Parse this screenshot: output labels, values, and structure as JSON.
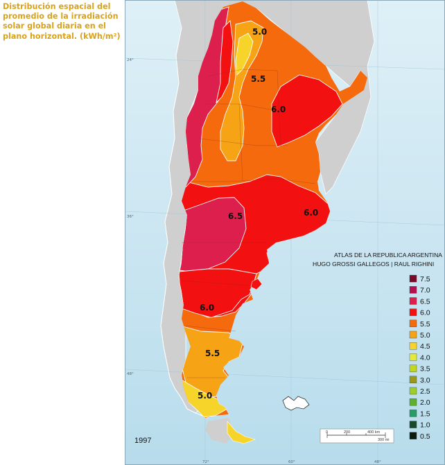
{
  "title": "Distribución espacial del promedio de la irradiación solar global diaria en el plano horizontal. (kWh/m²)",
  "atlas_line1": "ATLAS DE LA REPUBLICA ARGENTINA",
  "atlas_line2": "HUGO GROSSI GALLEGOS | RAUL RIGHINI",
  "year": "1997",
  "graticule": {
    "lat_24": "24°",
    "lat_36": "36°",
    "lat_48": "48°",
    "lon_72": "72°",
    "lon_60": "60°",
    "lon_48": "48°"
  },
  "scale": {
    "km0": "0",
    "km200": "200",
    "km400": "400 km",
    "mi300": "300 mi"
  },
  "map_labels": [
    {
      "id": "nw-5-0",
      "text": "5.0"
    },
    {
      "id": "north-5-5",
      "text": "5.5"
    },
    {
      "id": "ne-6-0",
      "text": "6.0"
    },
    {
      "id": "center-6-5",
      "text": "6.5"
    },
    {
      "id": "east-6-0",
      "text": "6.0"
    },
    {
      "id": "patagonia-6-0",
      "text": "6.0"
    },
    {
      "id": "south-5-5",
      "text": "5.5"
    },
    {
      "id": "south-5-0",
      "text": "5.0"
    }
  ],
  "legend": [
    {
      "label": "7.5",
      "color": "#7a0a2a"
    },
    {
      "label": "7.0",
      "color": "#b5114f"
    },
    {
      "label": "6.5",
      "color": "#dc1f4d"
    },
    {
      "label": "6.0",
      "color": "#f21010"
    },
    {
      "label": "5.5",
      "color": "#f46a0c"
    },
    {
      "label": "5.0",
      "color": "#f6a315"
    },
    {
      "label": "4.5",
      "color": "#f7d42a"
    },
    {
      "label": "4.0",
      "color": "#e4ea3a"
    },
    {
      "label": "3.5",
      "color": "#c2d81c"
    },
    {
      "label": "3.0",
      "color": "#9a9a1a"
    },
    {
      "label": "2.5",
      "color": "#9dcf2c"
    },
    {
      "label": "2.0",
      "color": "#5fb030"
    },
    {
      "label": "1.5",
      "color": "#2a9a66"
    },
    {
      "label": "1.0",
      "color": "#1a4a2a"
    },
    {
      "label": "0.5",
      "color": "#0c1a10"
    }
  ]
}
